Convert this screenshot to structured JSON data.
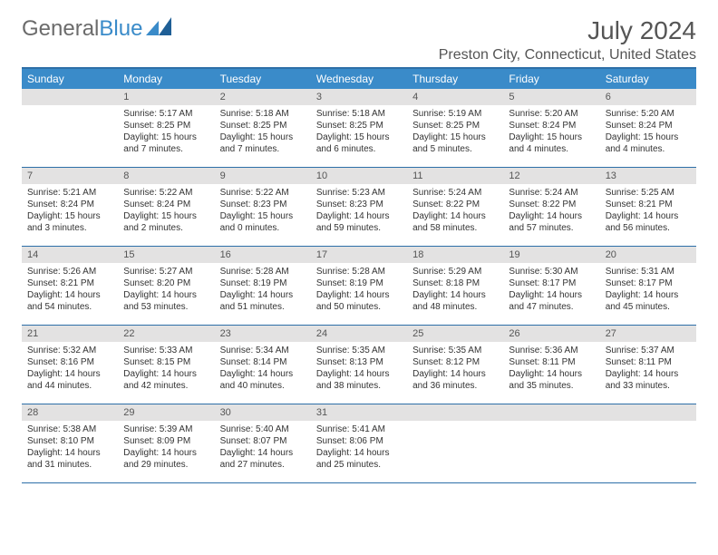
{
  "logo": {
    "text1": "General",
    "text2": "Blue"
  },
  "title": "July 2024",
  "location": "Preston City, Connecticut, United States",
  "colors": {
    "header_bg": "#3a8bc9",
    "header_text": "#ffffff",
    "border": "#2d6fa8",
    "daynum_bg": "#e3e2e2",
    "body_bg": "#ffffff",
    "text": "#333333"
  },
  "weekdays": [
    "Sunday",
    "Monday",
    "Tuesday",
    "Wednesday",
    "Thursday",
    "Friday",
    "Saturday"
  ],
  "weeks": [
    [
      {
        "n": "",
        "sr": "",
        "ss": "",
        "d1": "",
        "d2": ""
      },
      {
        "n": "1",
        "sr": "Sunrise: 5:17 AM",
        "ss": "Sunset: 8:25 PM",
        "d1": "Daylight: 15 hours",
        "d2": "and 7 minutes."
      },
      {
        "n": "2",
        "sr": "Sunrise: 5:18 AM",
        "ss": "Sunset: 8:25 PM",
        "d1": "Daylight: 15 hours",
        "d2": "and 7 minutes."
      },
      {
        "n": "3",
        "sr": "Sunrise: 5:18 AM",
        "ss": "Sunset: 8:25 PM",
        "d1": "Daylight: 15 hours",
        "d2": "and 6 minutes."
      },
      {
        "n": "4",
        "sr": "Sunrise: 5:19 AM",
        "ss": "Sunset: 8:25 PM",
        "d1": "Daylight: 15 hours",
        "d2": "and 5 minutes."
      },
      {
        "n": "5",
        "sr": "Sunrise: 5:20 AM",
        "ss": "Sunset: 8:24 PM",
        "d1": "Daylight: 15 hours",
        "d2": "and 4 minutes."
      },
      {
        "n": "6",
        "sr": "Sunrise: 5:20 AM",
        "ss": "Sunset: 8:24 PM",
        "d1": "Daylight: 15 hours",
        "d2": "and 4 minutes."
      }
    ],
    [
      {
        "n": "7",
        "sr": "Sunrise: 5:21 AM",
        "ss": "Sunset: 8:24 PM",
        "d1": "Daylight: 15 hours",
        "d2": "and 3 minutes."
      },
      {
        "n": "8",
        "sr": "Sunrise: 5:22 AM",
        "ss": "Sunset: 8:24 PM",
        "d1": "Daylight: 15 hours",
        "d2": "and 2 minutes."
      },
      {
        "n": "9",
        "sr": "Sunrise: 5:22 AM",
        "ss": "Sunset: 8:23 PM",
        "d1": "Daylight: 15 hours",
        "d2": "and 0 minutes."
      },
      {
        "n": "10",
        "sr": "Sunrise: 5:23 AM",
        "ss": "Sunset: 8:23 PM",
        "d1": "Daylight: 14 hours",
        "d2": "and 59 minutes."
      },
      {
        "n": "11",
        "sr": "Sunrise: 5:24 AM",
        "ss": "Sunset: 8:22 PM",
        "d1": "Daylight: 14 hours",
        "d2": "and 58 minutes."
      },
      {
        "n": "12",
        "sr": "Sunrise: 5:24 AM",
        "ss": "Sunset: 8:22 PM",
        "d1": "Daylight: 14 hours",
        "d2": "and 57 minutes."
      },
      {
        "n": "13",
        "sr": "Sunrise: 5:25 AM",
        "ss": "Sunset: 8:21 PM",
        "d1": "Daylight: 14 hours",
        "d2": "and 56 minutes."
      }
    ],
    [
      {
        "n": "14",
        "sr": "Sunrise: 5:26 AM",
        "ss": "Sunset: 8:21 PM",
        "d1": "Daylight: 14 hours",
        "d2": "and 54 minutes."
      },
      {
        "n": "15",
        "sr": "Sunrise: 5:27 AM",
        "ss": "Sunset: 8:20 PM",
        "d1": "Daylight: 14 hours",
        "d2": "and 53 minutes."
      },
      {
        "n": "16",
        "sr": "Sunrise: 5:28 AM",
        "ss": "Sunset: 8:19 PM",
        "d1": "Daylight: 14 hours",
        "d2": "and 51 minutes."
      },
      {
        "n": "17",
        "sr": "Sunrise: 5:28 AM",
        "ss": "Sunset: 8:19 PM",
        "d1": "Daylight: 14 hours",
        "d2": "and 50 minutes."
      },
      {
        "n": "18",
        "sr": "Sunrise: 5:29 AM",
        "ss": "Sunset: 8:18 PM",
        "d1": "Daylight: 14 hours",
        "d2": "and 48 minutes."
      },
      {
        "n": "19",
        "sr": "Sunrise: 5:30 AM",
        "ss": "Sunset: 8:17 PM",
        "d1": "Daylight: 14 hours",
        "d2": "and 47 minutes."
      },
      {
        "n": "20",
        "sr": "Sunrise: 5:31 AM",
        "ss": "Sunset: 8:17 PM",
        "d1": "Daylight: 14 hours",
        "d2": "and 45 minutes."
      }
    ],
    [
      {
        "n": "21",
        "sr": "Sunrise: 5:32 AM",
        "ss": "Sunset: 8:16 PM",
        "d1": "Daylight: 14 hours",
        "d2": "and 44 minutes."
      },
      {
        "n": "22",
        "sr": "Sunrise: 5:33 AM",
        "ss": "Sunset: 8:15 PM",
        "d1": "Daylight: 14 hours",
        "d2": "and 42 minutes."
      },
      {
        "n": "23",
        "sr": "Sunrise: 5:34 AM",
        "ss": "Sunset: 8:14 PM",
        "d1": "Daylight: 14 hours",
        "d2": "and 40 minutes."
      },
      {
        "n": "24",
        "sr": "Sunrise: 5:35 AM",
        "ss": "Sunset: 8:13 PM",
        "d1": "Daylight: 14 hours",
        "d2": "and 38 minutes."
      },
      {
        "n": "25",
        "sr": "Sunrise: 5:35 AM",
        "ss": "Sunset: 8:12 PM",
        "d1": "Daylight: 14 hours",
        "d2": "and 36 minutes."
      },
      {
        "n": "26",
        "sr": "Sunrise: 5:36 AM",
        "ss": "Sunset: 8:11 PM",
        "d1": "Daylight: 14 hours",
        "d2": "and 35 minutes."
      },
      {
        "n": "27",
        "sr": "Sunrise: 5:37 AM",
        "ss": "Sunset: 8:11 PM",
        "d1": "Daylight: 14 hours",
        "d2": "and 33 minutes."
      }
    ],
    [
      {
        "n": "28",
        "sr": "Sunrise: 5:38 AM",
        "ss": "Sunset: 8:10 PM",
        "d1": "Daylight: 14 hours",
        "d2": "and 31 minutes."
      },
      {
        "n": "29",
        "sr": "Sunrise: 5:39 AM",
        "ss": "Sunset: 8:09 PM",
        "d1": "Daylight: 14 hours",
        "d2": "and 29 minutes."
      },
      {
        "n": "30",
        "sr": "Sunrise: 5:40 AM",
        "ss": "Sunset: 8:07 PM",
        "d1": "Daylight: 14 hours",
        "d2": "and 27 minutes."
      },
      {
        "n": "31",
        "sr": "Sunrise: 5:41 AM",
        "ss": "Sunset: 8:06 PM",
        "d1": "Daylight: 14 hours",
        "d2": "and 25 minutes."
      },
      {
        "n": "",
        "sr": "",
        "ss": "",
        "d1": "",
        "d2": ""
      },
      {
        "n": "",
        "sr": "",
        "ss": "",
        "d1": "",
        "d2": ""
      },
      {
        "n": "",
        "sr": "",
        "ss": "",
        "d1": "",
        "d2": ""
      }
    ]
  ]
}
